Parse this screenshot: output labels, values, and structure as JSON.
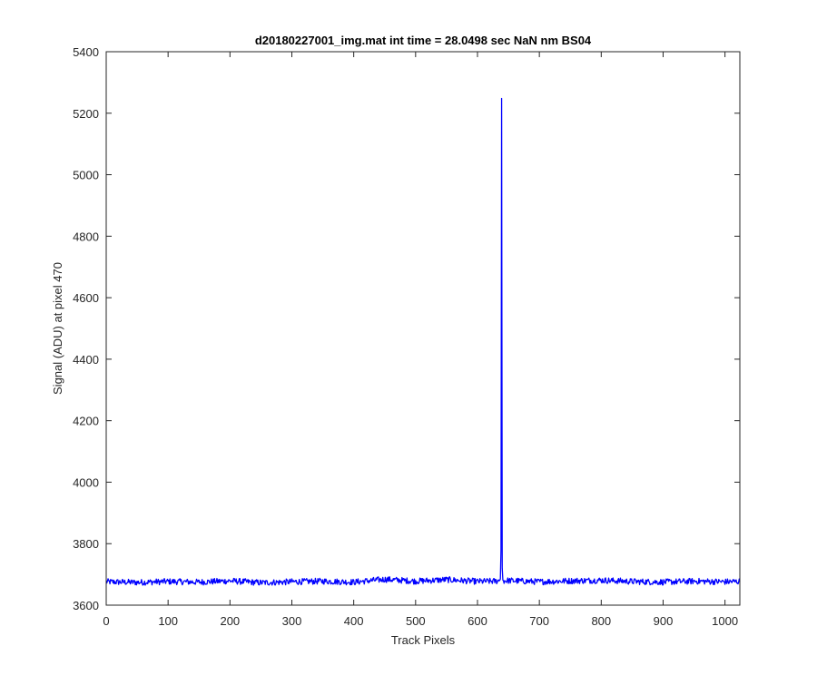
{
  "chart_data": {
    "type": "line",
    "title": "d20180227001_img.mat int time = 28.0498 sec  NaN nm BS04",
    "xlabel": "Track Pixels",
    "ylabel": "Signal (ADU) at pixel 470",
    "xlim": [
      0,
      1024
    ],
    "ylim": [
      3600,
      5400
    ],
    "xticks": [
      0,
      100,
      200,
      300,
      400,
      500,
      600,
      700,
      800,
      900,
      1000
    ],
    "yticks": [
      3600,
      3800,
      4000,
      4200,
      4400,
      4600,
      4800,
      5000,
      5200,
      5400
    ],
    "grid": false,
    "series": [
      {
        "color": "#0000ff",
        "baseline": 3678,
        "noise_amplitude": 10,
        "x": [
          0,
          50,
          100,
          150,
          200,
          250,
          300,
          350,
          400,
          450,
          500,
          550,
          600,
          630,
          636,
          637,
          638,
          639,
          640,
          641,
          642,
          650,
          700,
          750,
          800,
          850,
          900,
          950,
          1000,
          1024
        ],
        "y": [
          3676,
          3674,
          3677,
          3675,
          3679,
          3673,
          3676,
          3678,
          3675,
          3684,
          3678,
          3683,
          3677,
          3678,
          3681,
          3685,
          3780,
          5248,
          3720,
          3682,
          3679,
          3680,
          3676,
          3679,
          3681,
          3677,
          3675,
          3678,
          3676,
          3677
        ]
      }
    ]
  }
}
